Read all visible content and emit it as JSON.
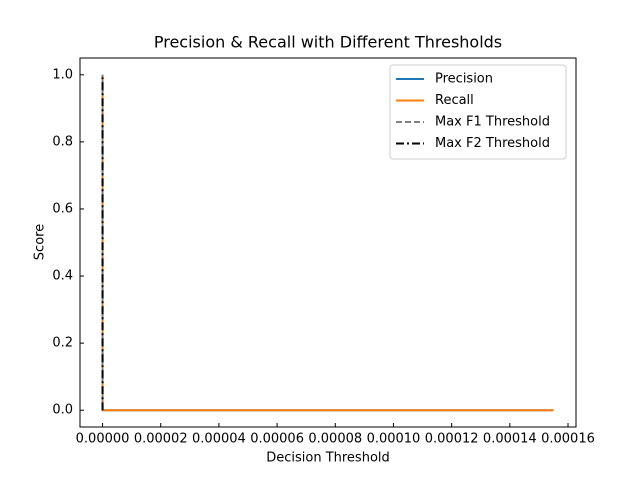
{
  "chart_data": {
    "type": "line",
    "title": "Precision & Recall with Different Thresholds",
    "x_label": "Decision Threshold",
    "y_label": "Score",
    "xlim": [
      -7.75e-06,
      0.00016275
    ],
    "ylim": [
      -0.05,
      1.05
    ],
    "xticks": [
      {
        "value": 0,
        "label": "0.00000"
      },
      {
        "value": 2e-05,
        "label": "0.00002"
      },
      {
        "value": 4e-05,
        "label": "0.00004"
      },
      {
        "value": 6e-05,
        "label": "0.00006"
      },
      {
        "value": 8e-05,
        "label": "0.00008"
      },
      {
        "value": 0.0001,
        "label": "0.00010"
      },
      {
        "value": 0.00012,
        "label": "0.00012"
      },
      {
        "value": 0.00014,
        "label": "0.00014"
      },
      {
        "value": 0.00016,
        "label": "0.00016"
      }
    ],
    "yticks": [
      {
        "value": 0,
        "label": "0.0"
      },
      {
        "value": 0.2,
        "label": "0.2"
      },
      {
        "value": 0.4,
        "label": "0.4"
      },
      {
        "value": 0.6,
        "label": "0.6"
      },
      {
        "value": 0.8,
        "label": "0.8"
      },
      {
        "value": 1,
        "label": "1.0"
      }
    ],
    "legend": "upper right",
    "series": [
      {
        "name": "Precision",
        "color": "#1f77b4",
        "style": "solid",
        "x": [
          0,
          0.000155
        ],
        "values": [
          0,
          0
        ]
      },
      {
        "name": "Recall",
        "color": "#ff7f0e",
        "style": "solid",
        "x": [
          0,
          0,
          0.000155
        ],
        "values": [
          1,
          0,
          0
        ]
      },
      {
        "name": "Max F1 Threshold",
        "color": "#808080",
        "style": "dashed",
        "x": [
          0,
          0
        ],
        "values": [
          0,
          1
        ]
      },
      {
        "name": "Max F2 Threshold",
        "color": "#000000",
        "style": "dashdot",
        "x": [
          0,
          0
        ],
        "values": [
          0,
          1
        ]
      }
    ]
  }
}
